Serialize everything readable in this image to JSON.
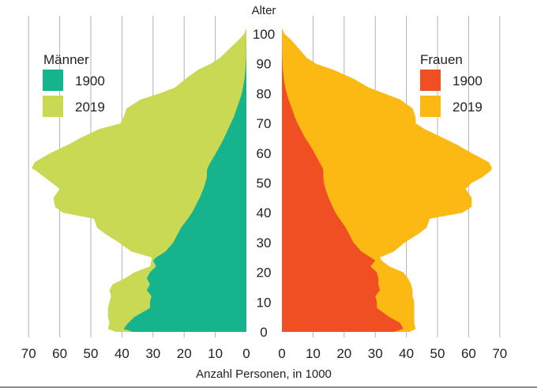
{
  "chart_data": {
    "type": "area",
    "title": "",
    "y_axis_title": "Alter",
    "xlabel": "Anzahl Personen, in 1000",
    "x_ticks": [
      "70",
      "60",
      "50",
      "40",
      "30",
      "20",
      "10",
      "0"
    ],
    "y_ticks": [
      "0",
      "10",
      "20",
      "30",
      "40",
      "50",
      "60",
      "70",
      "80",
      "90",
      "100"
    ],
    "xlim": [
      0,
      70
    ],
    "ylim": [
      0,
      100
    ],
    "grid": "vertical",
    "legends": {
      "left": {
        "title": "Männer",
        "entries": [
          "1900",
          "2019"
        ],
        "placement": "top-left"
      },
      "right": {
        "title": "Frauen",
        "entries": [
          "1900",
          "2019"
        ],
        "placement": "top-right"
      }
    },
    "colors": {
      "maenner_1900": "#15b48d",
      "maenner_2019": "#cad954",
      "frauen_1900": "#f04e23",
      "frauen_2019": "#fdb913",
      "grid": "#b3b3b3"
    },
    "ages": [
      0,
      1,
      3,
      5,
      8,
      10,
      12,
      14,
      16,
      18,
      20,
      22,
      24,
      25,
      27,
      30,
      33,
      35,
      38,
      40,
      42,
      45,
      48,
      50,
      52,
      54,
      55,
      57,
      60,
      63,
      65,
      68,
      70,
      72,
      75,
      78,
      80,
      82,
      85,
      88,
      90,
      92,
      95,
      98,
      100,
      102
    ],
    "series": [
      {
        "name": "1900",
        "side": "Männer",
        "values": [
          36.5,
          39.5,
          38,
          36,
          31,
          31,
          30.5,
          32,
          31,
          32,
          31,
          29,
          30,
          29,
          26,
          23.5,
          22,
          21,
          18.8,
          17.5,
          16.5,
          15,
          13.8,
          13.2,
          12.7,
          12.7,
          12.5,
          11.5,
          9.8,
          8.2,
          7.2,
          5.9,
          5,
          4.1,
          3.1,
          2.1,
          1.5,
          1.1,
          0.6,
          0.3,
          0.2,
          0.1,
          0.05,
          0.02,
          0,
          0
        ]
      },
      {
        "name": "2019",
        "side": "Männer",
        "values": [
          42,
          44.5,
          44,
          44.5,
          44.5,
          44,
          43.5,
          44,
          43,
          39,
          36,
          31,
          30.5,
          30.5,
          37,
          41,
          45.5,
          48,
          49,
          59,
          61.5,
          62,
          60,
          62.5,
          65,
          67.5,
          69,
          68,
          63,
          57,
          53.5,
          47.5,
          40.5,
          39.5,
          38.5,
          34,
          28,
          23,
          19.5,
          15.5,
          11.5,
          8.5,
          5.5,
          2.5,
          0.7,
          0
        ]
      },
      {
        "name": "1900",
        "side": "Frauen",
        "values": [
          36,
          39,
          38,
          34.5,
          30.5,
          30.5,
          30,
          31.5,
          31,
          31,
          30.5,
          28.5,
          30,
          28.5,
          25.5,
          23,
          21.5,
          20.5,
          18.5,
          17.2,
          16.3,
          15,
          14,
          13.5,
          13.3,
          13.3,
          13.1,
          12,
          10.5,
          8.8,
          7.5,
          6,
          5,
          4.2,
          3.2,
          2.1,
          1.6,
          1.1,
          0.6,
          0.3,
          0.2,
          0.1,
          0.05,
          0.02,
          0,
          0
        ]
      },
      {
        "name": "2019",
        "side": "Frauen",
        "values": [
          41,
          43,
          42.5,
          42.5,
          42.5,
          42.5,
          42,
          42,
          41.5,
          40.5,
          39,
          34.5,
          32,
          31.5,
          36,
          39.5,
          44,
          46.5,
          47.5,
          58,
          61,
          61,
          59,
          61,
          64.5,
          67,
          67.5,
          66.5,
          61,
          56,
          52,
          46,
          43,
          43,
          42,
          38,
          33,
          28,
          23,
          16.5,
          11,
          8,
          5.5,
          3,
          0.8,
          0
        ]
      }
    ]
  }
}
